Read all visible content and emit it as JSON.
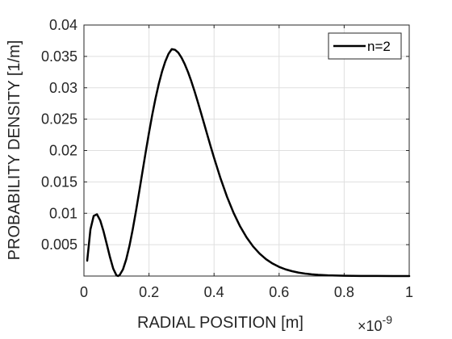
{
  "chart_data": {
    "type": "line",
    "title": "",
    "xlabel": "RADIAL POSITION [m]",
    "ylabel": "PROBABILITY DENSITY [1/m]",
    "x_exponent_label": "×10",
    "x_exponent_power": "-9",
    "xlim": [
      0,
      1
    ],
    "ylim": [
      0,
      0.04
    ],
    "x_ticks": [
      0,
      0.2,
      0.4,
      0.6,
      0.8,
      1
    ],
    "x_tick_labels": [
      "0",
      "0.2",
      "0.4",
      "0.6",
      "0.8",
      "1"
    ],
    "y_ticks": [
      0.005,
      0.01,
      0.015,
      0.02,
      0.025,
      0.03,
      0.035,
      0.04
    ],
    "y_tick_labels": [
      "0.005",
      "0.01",
      "0.015",
      "0.02",
      "0.025",
      "0.03",
      "0.035",
      "0.04"
    ],
    "grid": true,
    "legend_position": "top-right",
    "series": [
      {
        "name": "n=2",
        "color": "#000000",
        "x": [
          0.01,
          0.02,
          0.03,
          0.04,
          0.05,
          0.06,
          0.07,
          0.08,
          0.09,
          0.1,
          0.105,
          0.11,
          0.12,
          0.13,
          0.14,
          0.15,
          0.16,
          0.17,
          0.18,
          0.19,
          0.2,
          0.21,
          0.22,
          0.23,
          0.24,
          0.25,
          0.26,
          0.27,
          0.28,
          0.29,
          0.3,
          0.31,
          0.32,
          0.33,
          0.34,
          0.35,
          0.36,
          0.37,
          0.38,
          0.39,
          0.4,
          0.42,
          0.44,
          0.46,
          0.48,
          0.5,
          0.52,
          0.54,
          0.56,
          0.58,
          0.6,
          0.62,
          0.64,
          0.66,
          0.68,
          0.7,
          0.72,
          0.75,
          0.8,
          0.85,
          0.9,
          0.95,
          1.0
        ],
        "y": [
          0.00245,
          0.00744,
          0.00959,
          0.00984,
          0.00887,
          0.00717,
          0.00512,
          0.00302,
          0.00118,
          0.0001,
          0.0,
          0.00018,
          0.00106,
          0.00266,
          0.00483,
          0.00744,
          0.01036,
          0.01347,
          0.01665,
          0.0198,
          0.02284,
          0.0257,
          0.0283,
          0.0306,
          0.03257,
          0.03418,
          0.03541,
          0.03616,
          0.03605,
          0.0356,
          0.0348,
          0.03375,
          0.0325,
          0.03105,
          0.02945,
          0.02775,
          0.02598,
          0.02418,
          0.02237,
          0.02058,
          0.01884,
          0.01555,
          0.01261,
          0.01007,
          0.00792,
          0.00616,
          0.00472,
          0.00358,
          0.00268,
          0.00199,
          0.00146,
          0.00106,
          0.00077,
          0.00055,
          0.00039,
          0.00027,
          0.00019,
          0.00011,
          5e-05,
          2e-05,
          1e-05,
          0.0,
          0.0
        ]
      }
    ]
  }
}
